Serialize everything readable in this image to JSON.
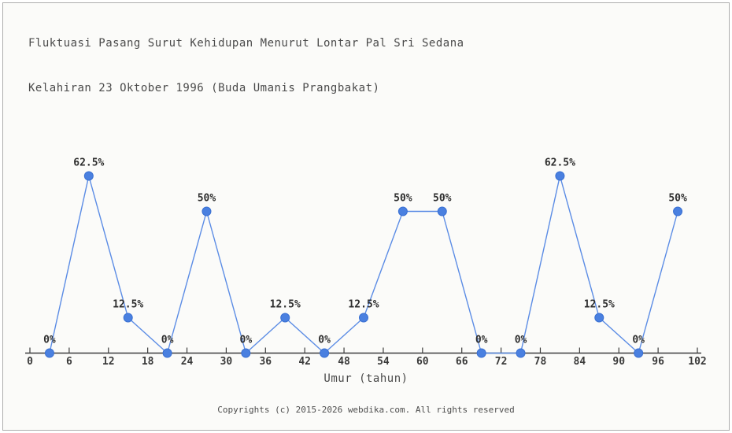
{
  "page": {
    "title_line1": "Fluktuasi Pasang Surut Kehidupan Menurut Lontar Pal Sri Sedana",
    "title_line2": "Kelahiran 23 Oktober 1996 (Buda Umanis Prangbakat)",
    "footer": "Copyrights (c) 2015-2026 webdika.com. All rights reserved"
  },
  "chart_data": {
    "type": "line",
    "title": "Fluktuasi Pasang Surut Kehidupan Menurut Lontar Pal Sri Sedana Kelahiran 23 Oktober 1996 (Buda Umanis Prangbakat)",
    "xlabel": "Umur (tahun)",
    "ylabel": "",
    "x": [
      3,
      9,
      15,
      21,
      27,
      33,
      39,
      45,
      51,
      57,
      63,
      69,
      75,
      81,
      87,
      93,
      99
    ],
    "values": [
      0,
      62.5,
      12.5,
      0,
      50,
      0,
      12.5,
      0,
      12.5,
      50,
      50,
      0,
      0,
      62.5,
      12.5,
      0,
      50
    ],
    "point_labels": [
      "0%",
      "62.5%",
      "12.5%",
      "0%",
      "50%",
      "0%",
      "12.5%",
      "0%",
      "12.5%",
      "50%",
      "50%",
      "0%",
      "0%",
      "62.5%",
      "12.5%",
      "0%",
      "50%"
    ],
    "x_ticks": [
      0,
      6,
      12,
      18,
      24,
      30,
      36,
      42,
      48,
      54,
      60,
      66,
      72,
      78,
      84,
      90,
      96,
      102
    ],
    "xlim": [
      0,
      102
    ],
    "ylim": [
      0,
      75
    ],
    "grid": false,
    "legend": "none",
    "colors": {
      "line": "#5b8ce5",
      "marker": "#4a80e0",
      "marker_border": "#3a70d2",
      "axis": "#3c3c3c",
      "tick_text": "#3a3a3a",
      "value_text": "#2e2e2e",
      "title_text": "#4a4a4a",
      "footer_text": "#4d4d4d",
      "background": "#fbfbf9",
      "frame_border": "#adadad"
    }
  }
}
